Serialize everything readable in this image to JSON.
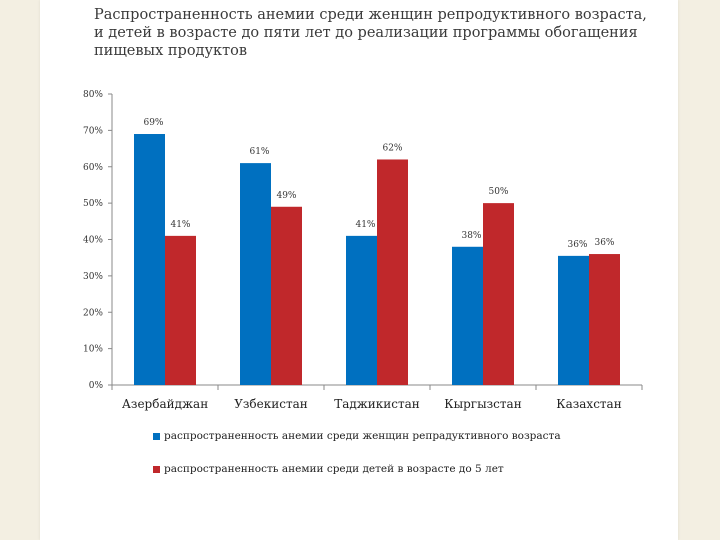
{
  "chart_data": {
    "type": "bar",
    "title": "Распространенность анемии среди женщин репродуктивного возраста, и детей в возрасте до пяти лет до реализации программы обогащения пищевых продуктов",
    "categories": [
      "Азербайджан",
      "Узбекистан",
      "Таджикистан",
      "Кыргызстан",
      "Казахстан"
    ],
    "series": [
      {
        "name": "распространенность анемии среди женщин репрадуктивного возраста",
        "values": [
          69,
          61,
          41,
          38,
          35.5
        ],
        "labels": [
          "69%",
          "61%",
          "41%",
          "38%",
          "36%"
        ],
        "color": "#0070c0"
      },
      {
        "name": "распространенность анемии среди детей в возрасте до 5 лет",
        "values": [
          41,
          49,
          62,
          50,
          36
        ],
        "labels": [
          "41%",
          "49%",
          "62%",
          "50%",
          "36%"
        ],
        "color": "#c0282b"
      }
    ],
    "y_ticks": [
      "0%",
      "10%",
      "20%",
      "30%",
      "40%",
      "50%",
      "60%",
      "70%",
      "80%"
    ],
    "ylim": [
      0,
      80
    ],
    "grid": false,
    "legend_position": "bottom"
  }
}
